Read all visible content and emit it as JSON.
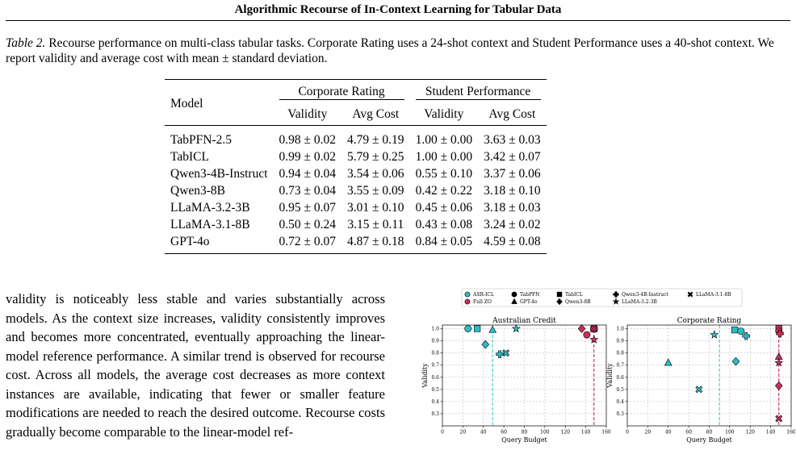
{
  "header": {
    "title": "Algorithmic Recourse of In-Context Learning for Tabular Data"
  },
  "caption": {
    "label": "Table 2.",
    "text": "Recourse performance on multi-class tabular tasks. Corporate Rating uses a 24-shot context and Student Performance uses a 40-shot context. We report validity and average cost with mean ± standard deviation."
  },
  "table": {
    "model_header": "Model",
    "groups": [
      "Corporate Rating",
      "Student Performance"
    ],
    "subheaders": [
      "Validity",
      "Avg Cost",
      "Validity",
      "Avg Cost"
    ],
    "rows": [
      {
        "model": "TabPFN-2.5",
        "values": [
          "0.98 ± 0.02",
          "4.79 ± 0.19",
          "1.00 ± 0.00",
          "3.63 ± 0.03"
        ]
      },
      {
        "model": "TabICL",
        "values": [
          "0.99 ± 0.02",
          "5.79 ± 0.25",
          "1.00 ± 0.00",
          "3.42 ± 0.07"
        ]
      },
      {
        "model": "Qwen3-4B-Instruct",
        "values": [
          "0.94 ± 0.04",
          "3.54 ± 0.06",
          "0.55 ± 0.10",
          "3.37 ± 0.06"
        ]
      },
      {
        "model": "Qwen3-8B",
        "values": [
          "0.73 ± 0.04",
          "3.55 ± 0.09",
          "0.42 ± 0.22",
          "3.18 ± 0.10"
        ]
      },
      {
        "model": "LLaMA-3.2-3B",
        "values": [
          "0.95 ± 0.07",
          "3.01 ± 0.10",
          "0.45 ± 0.06",
          "3.18 ± 0.03"
        ]
      },
      {
        "model": "LLaMA-3.1-8B",
        "values": [
          "0.50 ± 0.24",
          "3.15 ± 0.11",
          "0.43 ± 0.08",
          "3.24 ± 0.02"
        ]
      },
      {
        "model": "GPT-4o",
        "values": [
          "0.72 ± 0.07",
          "4.87 ± 0.18",
          "0.84 ± 0.05",
          "4.59 ± 0.08"
        ]
      }
    ]
  },
  "body": {
    "paragraph": "validity is noticeably less stable and varies substantially across models. As the context size increases, validity consistently improves and becomes more concentrated, eventually approaching the linear-model reference performance. A similar trend is observed for recourse cost. Across all models, the average cost decreases as more context instances are available, indicating that fewer or smaller feature modifications are needed to reach the desired outcome. Recourse costs gradually become comparable to the linear-model ref-"
  },
  "colors": {
    "asr_icl": "#2bbcc7",
    "full_zo": "#c7305a",
    "asr_line": "#29c3d6",
    "zo_line": "#c0143c"
  },
  "legend": {
    "methods": [
      {
        "label": "ASR-ICL",
        "color": "#2bbcc7"
      },
      {
        "label": "Full ZO",
        "color": "#c7305a"
      }
    ],
    "models": [
      {
        "label": "TabPFN",
        "marker": "circle"
      },
      {
        "label": "GPT-4o",
        "marker": "triangle"
      },
      {
        "label": "TabICL",
        "marker": "square"
      },
      {
        "label": "Qwen3-8B",
        "marker": "diamond"
      },
      {
        "label": "Qwen3-4B-Instruct",
        "marker": "plus"
      },
      {
        "label": "LLaMA-3.2-3B",
        "marker": "star"
      },
      {
        "label": "LLaMA-3.1-8B",
        "marker": "x"
      }
    ]
  },
  "chart_data": [
    {
      "type": "scatter",
      "title": "Australian Credit",
      "xlabel": "Query Budget",
      "ylabel": "Validity",
      "xlim": [
        0,
        160
      ],
      "ylim": [
        0.2,
        1.03
      ],
      "xticks": [
        0,
        20,
        40,
        60,
        80,
        100,
        120,
        140,
        160
      ],
      "yticks": [
        0.3,
        0.4,
        0.5,
        0.6,
        0.7,
        0.8,
        0.9,
        1.0
      ],
      "grid": true,
      "vlines": [
        {
          "x": 49,
          "method": "ASR-ICL"
        },
        {
          "x": 148,
          "method": "Full ZO"
        }
      ],
      "points": [
        {
          "method": "ASR-ICL",
          "model": "TabPFN",
          "x": 25,
          "y": 1.0
        },
        {
          "method": "ASR-ICL",
          "model": "TabICL",
          "x": 34,
          "y": 1.0
        },
        {
          "method": "ASR-ICL",
          "model": "GPT-4o",
          "x": 49,
          "y": 0.99
        },
        {
          "method": "ASR-ICL",
          "model": "LLaMA-3.2-3B",
          "x": 72,
          "y": 1.0
        },
        {
          "method": "ASR-ICL",
          "model": "Qwen3-8B",
          "x": 42,
          "y": 0.87
        },
        {
          "method": "ASR-ICL",
          "model": "Qwen3-4B-Instruct",
          "x": 56,
          "y": 0.79
        },
        {
          "method": "ASR-ICL",
          "model": "LLaMA-3.1-8B",
          "x": 62,
          "y": 0.8
        },
        {
          "method": "Full ZO",
          "model": "Qwen3-8B",
          "x": 136,
          "y": 1.0
        },
        {
          "method": "Full ZO",
          "model": "TabPFN",
          "x": 141,
          "y": 0.95
        },
        {
          "method": "Full ZO",
          "model": "TabICL",
          "x": 148,
          "y": 1.0
        },
        {
          "method": "Full ZO",
          "model": "GPT-4o",
          "x": 148,
          "y": 1.0
        },
        {
          "method": "Full ZO",
          "model": "Qwen3-4B-Instruct",
          "x": 148,
          "y": 1.0
        },
        {
          "method": "Full ZO",
          "model": "LLaMA-3.1-8B",
          "x": 148,
          "y": 1.0
        },
        {
          "method": "Full ZO",
          "model": "LLaMA-3.2-3B",
          "x": 148,
          "y": 0.91
        }
      ]
    },
    {
      "type": "scatter",
      "title": "Corporate Rating",
      "xlabel": "Query Budget",
      "ylabel": "Validity",
      "xlim": [
        0,
        160
      ],
      "ylim": [
        0.2,
        1.03
      ],
      "xticks": [
        0,
        20,
        40,
        60,
        80,
        100,
        120,
        140,
        160
      ],
      "yticks": [
        0.3,
        0.4,
        0.5,
        0.6,
        0.7,
        0.8,
        0.9,
        1.0
      ],
      "grid": true,
      "vlines": [
        {
          "x": 90,
          "method": "ASR-ICL"
        },
        {
          "x": 148,
          "method": "Full ZO"
        }
      ],
      "points": [
        {
          "method": "ASR-ICL",
          "model": "GPT-4o",
          "x": 40,
          "y": 0.72
        },
        {
          "method": "ASR-ICL",
          "model": "LLaMA-3.1-8B",
          "x": 70,
          "y": 0.5
        },
        {
          "method": "ASR-ICL",
          "model": "LLaMA-3.2-3B",
          "x": 85,
          "y": 0.95
        },
        {
          "method": "ASR-ICL",
          "model": "TabICL",
          "x": 105,
          "y": 0.99
        },
        {
          "method": "ASR-ICL",
          "model": "TabPFN",
          "x": 111,
          "y": 0.98
        },
        {
          "method": "ASR-ICL",
          "model": "Qwen3-4B-Instruct",
          "x": 116,
          "y": 0.94
        },
        {
          "method": "ASR-ICL",
          "model": "Qwen3-8B",
          "x": 106,
          "y": 0.73
        },
        {
          "method": "Full ZO",
          "model": "TabICL",
          "x": 148,
          "y": 1.0
        },
        {
          "method": "Full ZO",
          "model": "TabPFN",
          "x": 148,
          "y": 0.98
        },
        {
          "method": "Full ZO",
          "model": "Qwen3-4B-Instruct",
          "x": 149,
          "y": 0.96
        },
        {
          "method": "Full ZO",
          "model": "GPT-4o",
          "x": 148,
          "y": 0.77
        },
        {
          "method": "Full ZO",
          "model": "LLaMA-3.2-3B",
          "x": 148,
          "y": 0.72
        },
        {
          "method": "Full ZO",
          "model": "Qwen3-8B",
          "x": 148,
          "y": 0.53
        },
        {
          "method": "Full ZO",
          "model": "LLaMA-3.1-8B",
          "x": 148,
          "y": 0.26
        }
      ]
    }
  ]
}
